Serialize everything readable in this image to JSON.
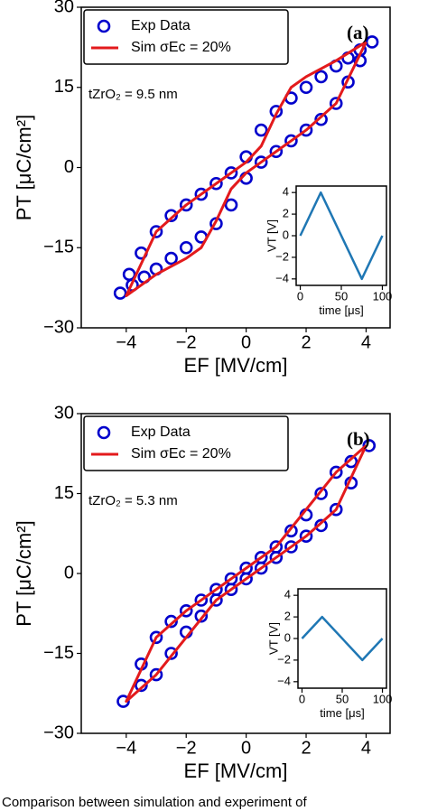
{
  "chart_data": [
    {
      "type": "scatter",
      "panel_label": "(a)",
      "annotation": "tZrO₂ = 9.5 nm",
      "xlabel": "EF [MV/cm]",
      "ylabel": "PT [μC/cm²]",
      "xlim": [
        -5.5,
        4.8
      ],
      "ylim": [
        -30,
        30
      ],
      "xticks": [
        {
          "value": -4,
          "label": "−4"
        },
        {
          "value": -2,
          "label": "−2"
        },
        0,
        2,
        4
      ],
      "yticks": [
        {
          "value": -30,
          "label": "−30"
        },
        {
          "value": -15,
          "label": "−15"
        },
        0,
        15,
        30
      ],
      "legend": "upper left",
      "series": [
        {
          "name": "Exp Data",
          "color": "#0000cc",
          "style": "markers",
          "x": [
            4.2,
            3.8,
            3.4,
            3.0,
            2.5,
            2.0,
            1.5,
            1.0,
            0.5,
            0,
            -0.5,
            -1.0,
            -1.5,
            -2.0,
            -2.5,
            -3.0,
            -3.5,
            -3.9,
            -4.2,
            -3.8,
            -3.4,
            -3.0,
            -2.5,
            -2.0,
            -1.5,
            -1.0,
            -0.5,
            0,
            0.5,
            1.0,
            1.5,
            2.0,
            2.5,
            3.0,
            3.4,
            3.8
          ],
          "values": [
            23.5,
            22,
            20.5,
            19,
            17,
            15,
            13,
            10.5,
            7,
            2,
            -1,
            -3,
            -5,
            -7,
            -9,
            -12,
            -16,
            -20,
            -23.5,
            -22,
            -20.5,
            -19,
            -17,
            -15,
            -13,
            -10.5,
            -7,
            -2,
            1,
            3,
            5,
            7,
            9,
            12,
            16,
            20
          ]
        },
        {
          "name": "Sim σEc = 20%",
          "color": "#e31a1c",
          "style": "line",
          "x": [
            4,
            3,
            2,
            1.5,
            1,
            0.5,
            0,
            -0.5,
            -1,
            -1.5,
            -2,
            -3,
            -4,
            -3,
            -2,
            -1.5,
            -1,
            -0.5,
            0,
            0.5,
            1,
            1.5,
            2,
            3,
            4
          ],
          "values": [
            23.5,
            20,
            17,
            15,
            10,
            4,
            1,
            -1,
            -3,
            -5,
            -7,
            -12,
            -24,
            -20,
            -17,
            -15,
            -10,
            -4,
            -1,
            1,
            3,
            5,
            7,
            12,
            23.5
          ]
        }
      ],
      "inset": {
        "type": "line",
        "xlabel": "time [μs]",
        "ylabel": "VT [V]",
        "color": "#1f77b4",
        "x": [
          0,
          25,
          75,
          100
        ],
        "values": [
          0,
          4,
          -4,
          0
        ],
        "xlim": [
          -5,
          105
        ],
        "ylim": [
          -4.6,
          4.6
        ],
        "xticks": [
          0,
          50,
          100
        ],
        "yticks": [
          {
            "value": -4,
            "label": "−4"
          },
          {
            "value": -2,
            "label": "−2"
          },
          0,
          2,
          4
        ]
      }
    },
    {
      "type": "scatter",
      "panel_label": "(b)",
      "annotation": "tZrO₂ = 5.3 nm",
      "xlabel": "EF [MV/cm]",
      "ylabel": "PT [μC/cm²]",
      "xlim": [
        -5.5,
        4.8
      ],
      "ylim": [
        -30,
        30
      ],
      "xticks": [
        {
          "value": -4,
          "label": "−4"
        },
        {
          "value": -2,
          "label": "−2"
        },
        0,
        2,
        4
      ],
      "yticks": [
        {
          "value": -30,
          "label": "−30"
        },
        {
          "value": -15,
          "label": "−15"
        },
        0,
        15,
        30
      ],
      "legend": "upper left",
      "series": [
        {
          "name": "Exp Data",
          "color": "#0000cc",
          "style": "markers",
          "x": [
            4.1,
            3.5,
            3.0,
            2.5,
            2.0,
            1.5,
            1.0,
            0.5,
            0,
            -0.5,
            -1.0,
            -1.5,
            -2.0,
            -2.5,
            -3.0,
            -3.5,
            -4.1,
            -3.5,
            -3.0,
            -2.5,
            -2.0,
            -1.5,
            -1.0,
            -0.5,
            0,
            0.5,
            1.0,
            1.5,
            2.0,
            2.5,
            3.0,
            3.5
          ],
          "values": [
            24,
            21,
            19,
            15,
            11,
            8,
            5,
            3,
            1,
            -1,
            -3,
            -5,
            -7,
            -9,
            -12,
            -17,
            -24,
            -21,
            -19,
            -15,
            -11,
            -8,
            -5,
            -3,
            -1,
            1,
            3,
            5,
            7,
            9,
            12,
            17
          ]
        },
        {
          "name": "Sim σEc = 20%",
          "color": "#e31a1c",
          "style": "line",
          "x": [
            4,
            3,
            2,
            1,
            0,
            -1,
            -2,
            -3,
            -4,
            -3,
            -2,
            -1,
            0,
            1,
            2,
            3,
            4
          ],
          "values": [
            24,
            19,
            12,
            5,
            1,
            -3,
            -7,
            -12,
            -24,
            -19,
            -12,
            -5,
            -1,
            3,
            7,
            12,
            24
          ]
        }
      ],
      "inset": {
        "type": "line",
        "xlabel": "time [μs]",
        "ylabel": "VT [V]",
        "color": "#1f77b4",
        "x": [
          0,
          25,
          75,
          100
        ],
        "values": [
          0,
          2,
          -2,
          0
        ],
        "xlim": [
          -5,
          105
        ],
        "ylim": [
          -4.6,
          4.6
        ],
        "xticks": [
          0,
          50,
          100
        ],
        "yticks": [
          {
            "value": -4,
            "label": "−4"
          },
          {
            "value": -2,
            "label": "−2"
          },
          0,
          2,
          4
        ]
      }
    }
  ],
  "caption": "Comparison between simulation and experiment of"
}
